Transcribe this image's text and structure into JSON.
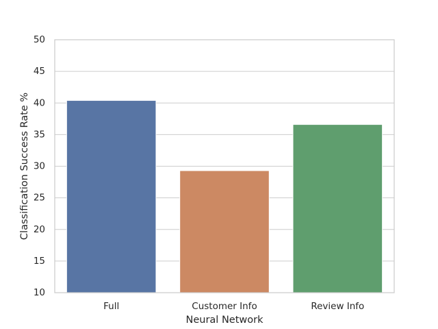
{
  "chart_data": {
    "type": "bar",
    "title": "",
    "xlabel": "Neural Network",
    "ylabel": "Classification Success Rate %",
    "categories": [
      "Full",
      "Customer Info",
      "Review Info"
    ],
    "values": [
      40.4,
      29.3,
      36.6
    ],
    "colors": [
      "#5875a4",
      "#cc8963",
      "#5f9e6e"
    ],
    "ylim": [
      10,
      50
    ],
    "yticks": [
      10,
      15,
      20,
      25,
      30,
      35,
      40,
      45,
      50
    ],
    "ytick_labels": [
      "10",
      "15",
      "20",
      "25",
      "30",
      "35",
      "40",
      "45",
      "50"
    ],
    "grid": "y-major",
    "legend": "none",
    "style": {
      "background": "#ffffff",
      "grid_color": "#cccccc",
      "spine_color": "#cccccc",
      "text_color": "#262626"
    }
  }
}
